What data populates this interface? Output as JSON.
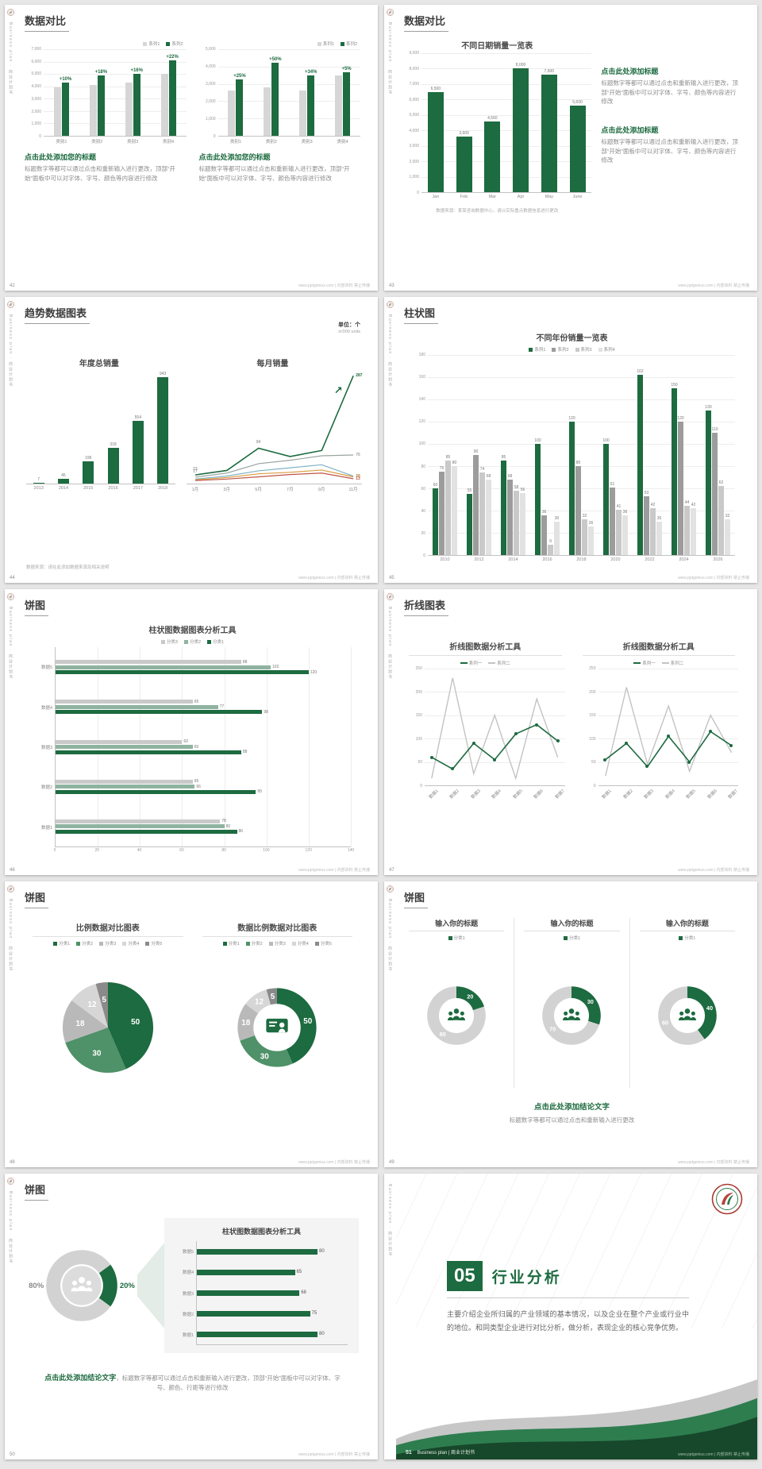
{
  "site_note": "www.pptgenius.com | 内部资料 禁止传播",
  "sidebar_text": "Business plan · 商业计划书",
  "slides": [
    {
      "page_no": "42",
      "title": "数据对比",
      "columns": [
        {
          "heading": "点击此处添加您的标题",
          "body": "标题数字等都可以通过点击和重新输入进行更改，顶部“开始”面板中可以对字体、字号、颜色等内容进行修改",
          "chart": {
            "type": "vbar",
            "ymax": 7000,
            "yticks": [
              "7,000",
              "6,000",
              "5,000",
              "4,000",
              "3,000",
              "2,000",
              "1,000",
              "0"
            ],
            "categories": [
              "类别1",
              "类别2",
              "类别3",
              "类别4"
            ],
            "legend": [
              {
                "label": "系列1",
                "color": "#d6d6d6"
              },
              {
                "label": "系列2",
                "color": "#1d6b40"
              }
            ],
            "series": [
              {
                "color": "#d6d6d6",
                "values": [
                  3900,
                  4100,
                  4300,
                  5000
                ]
              },
              {
                "color": "#1d6b40",
                "values": [
                  4300,
                  4850,
                  5000,
                  6100
                ],
                "pct": [
                  "+10%",
                  "+18%",
                  "+16%",
                  "+22%"
                ]
              }
            ]
          }
        },
        {
          "heading": "点击此处添加您的标题",
          "body": "标题数字等都可以通过点击和重新输入进行更改，顶部“开始”面板中可以对字体、字号、颜色等内容进行修改",
          "chart": {
            "type": "vbar",
            "ymax": 5000,
            "yticks": [
              "5,000",
              "4,000",
              "3,000",
              "2,000",
              "1,000",
              "0"
            ],
            "categories": [
              "类别1",
              "类别2",
              "类别3",
              "类别4"
            ],
            "legend": [
              {
                "label": "系列1",
                "color": "#d6d6d6"
              },
              {
                "label": "系列2",
                "color": "#1d6b40"
              }
            ],
            "series": [
              {
                "color": "#d6d6d6",
                "values": [
                  2600,
                  2800,
                  2600,
                  3500
                ]
              },
              {
                "color": "#1d6b40",
                "values": [
                  3250,
                  4200,
                  3480,
                  3680
                ],
                "pct": [
                  "+25%",
                  "+50%",
                  "+34%",
                  "+5%"
                ]
              }
            ]
          }
        }
      ]
    },
    {
      "page_no": "43",
      "title": "数据对比",
      "chart": {
        "type": "vbar",
        "title": "不同日期销量一览表",
        "ymax": 9000,
        "yticks": [
          "9,000",
          "8,000",
          "7,000",
          "6,000",
          "5,000",
          "4,000",
          "3,000",
          "2,000",
          "1,000",
          "0"
        ],
        "categories": [
          "Jan",
          "Feb",
          "Mar",
          "Apr",
          "May",
          "June"
        ],
        "series": [
          {
            "color": "#1d6b40",
            "values": [
              6500,
              3600,
              4560,
              8000,
              7600,
              5600
            ],
            "labels": [
              "6,500",
              "3,600",
              "4,560",
              "8,000",
              "7,600",
              "5,600"
            ]
          }
        ]
      },
      "blocks": [
        {
          "heading": "点击此处添加标题",
          "body": "标题数字等都可以通过点击和重新输入进行更改，顶部“开始”面板中可以对字体、字号、颜色等内容进行修改"
        },
        {
          "heading": "点击此处添加标题",
          "body": "标题数字等都可以通过点击和重新输入进行更改，顶部“开始”面板中可以对字体、字号、颜色等内容进行修改"
        }
      ],
      "source_note": "数据来源：某某咨询数据中心，请以实际重点数据信息进行更改"
    },
    {
      "page_no": "44",
      "title": "趋势数据图表",
      "unit_label": "单位：个",
      "unit_sub": "in'000 units",
      "bar_chart": {
        "type": "vbar",
        "title": "年度总销量",
        "ymax": 1000,
        "yticks": [],
        "grid": false,
        "categories": [
          "2013",
          "2014",
          "2015",
          "2016",
          "2017",
          "2018"
        ],
        "series": [
          {
            "color": "#1d6b40",
            "values": [
              7,
              45,
              196,
              318,
              554,
              943
            ],
            "labels": [
              "7",
              "45",
              "196",
              "318",
              "554",
              "943"
            ]
          }
        ]
      },
      "line_chart": {
        "type": "line",
        "title": "每月销量",
        "ymax": 300,
        "yticks": [],
        "arrow": true,
        "x": [
          "1月",
          "3月",
          "5月",
          "7月",
          "9月",
          "11月"
        ],
        "series": [
          {
            "color": "#1d6b40",
            "w": 1.6,
            "values": [
              23,
              35,
              94,
              72,
              88,
              287
            ],
            "start_label": "23",
            "mid_label": "94",
            "end_label": "287"
          },
          {
            "color": "#9aa5a0",
            "values": [
              17,
              28,
              53,
              62,
              74,
              76
            ],
            "start_label": "17",
            "end_label": "76"
          },
          {
            "color": "#7fb2c6",
            "values": [
              12,
              20,
              34,
              42,
              50,
              20
            ],
            "end_label": "20"
          },
          {
            "color": "#d89c3e",
            "values": [
              10,
              16,
              26,
              30,
              36,
              18
            ],
            "end_label": "18"
          },
          {
            "color": "#bf5448",
            "values": [
              8,
              12,
              18,
              24,
              28,
              13
            ],
            "end_label": "13"
          }
        ]
      },
      "source_note": "数据来源：请在此添加数据来源及相关说明"
    },
    {
      "page_no": "45",
      "title": "柱状图",
      "chart": {
        "type": "vbar",
        "title": "不同年份销量一览表",
        "ymax": 180,
        "show_values": true,
        "yticks": [
          "180",
          "160",
          "140",
          "120",
          "100",
          "80",
          "60",
          "40",
          "20",
          "0"
        ],
        "categories": [
          "2010",
          "2012",
          "2014",
          "2016",
          "2018",
          "2020",
          "2022",
          "2024",
          "2026"
        ],
        "legend": [
          {
            "label": "系列1",
            "color": "#1d6b40"
          },
          {
            "label": "系列2",
            "color": "#9c9c9c"
          },
          {
            "label": "系列3",
            "color": "#c9c9c9"
          },
          {
            "label": "系列4",
            "color": "#e2e2e2"
          }
        ],
        "series": [
          {
            "color": "#1d6b40",
            "values": [
              60,
              55,
              85,
              100,
              120,
              100,
              162,
              150,
              130
            ]
          },
          {
            "color": "#9c9c9c",
            "values": [
              75,
              90,
              68,
              36,
              80,
              61,
              53,
              120,
              110
            ]
          },
          {
            "color": "#c9c9c9",
            "values": [
              85,
              74,
              58,
              9,
              32,
              41,
              42,
              44,
              62
            ]
          },
          {
            "color": "#e2e2e2",
            "values": [
              80,
              68,
              56,
              30,
              26,
              36,
              30,
              42,
              32
            ]
          }
        ]
      }
    },
    {
      "page_no": "46",
      "title": "饼图",
      "chart": {
        "type": "hbar",
        "title": "柱状图数据图表分析工具",
        "xmax": 140,
        "legend": [
          {
            "label": "分类3",
            "color": "#c9c9c9"
          },
          {
            "label": "分类2",
            "color": "#8fb3a0"
          },
          {
            "label": "分类1",
            "color": "#1d6b40"
          }
        ],
        "categories": [
          "数据5",
          "数据4",
          "数据3",
          "数据2",
          "数据1"
        ],
        "series": [
          {
            "color": "#c9c9c9",
            "values": [
              88,
              65,
              60,
              65,
              78
            ]
          },
          {
            "color": "#8fb3a0",
            "values": [
              102,
              77,
              65,
              66,
              80
            ]
          },
          {
            "color": "#1d6b40",
            "values": [
              120,
              98,
              88,
              95,
              86
            ]
          }
        ],
        "xticks": [
          "0",
          "20",
          "40",
          "60",
          "80",
          "100",
          "120",
          "140"
        ]
      }
    },
    {
      "page_no": "47",
      "title": "折线图表",
      "charts": [
        {
          "type": "line",
          "title": "折线图数据分析工具",
          "ymax": 250,
          "yticks": [
            "250",
            "200",
            "150",
            "100",
            "50",
            "0"
          ],
          "legend": [
            {
              "label": "系列一",
              "color": "#1d6b40"
            },
            {
              "label": "系列二",
              "color": "#c3c3c3"
            }
          ],
          "x": [
            "数据1",
            "数据2",
            "数据3",
            "数据4",
            "数据5",
            "数据6",
            "数据7"
          ],
          "series": [
            {
              "color": "#c3c3c3",
              "w": 1.4,
              "values": [
                15,
                230,
                25,
                150,
                15,
                185,
                60
              ]
            },
            {
              "color": "#1d6b40",
              "w": 1.6,
              "marker": true,
              "values": [
                60,
                35,
                90,
                55,
                110,
                130,
                95
              ]
            }
          ]
        },
        {
          "type": "line",
          "title": "折线图数据分析工具",
          "ymax": 250,
          "yticks": [
            "250",
            "200",
            "150",
            "100",
            "50",
            "0"
          ],
          "legend": [
            {
              "label": "系列一",
              "color": "#1d6b40"
            },
            {
              "label": "系列二",
              "color": "#c3c3c3"
            }
          ],
          "x": [
            "数据1",
            "数据2",
            "数据3",
            "数据4",
            "数据5",
            "数据6",
            "数据7"
          ],
          "series": [
            {
              "color": "#c3c3c3",
              "w": 1.4,
              "values": [
                20,
                210,
                45,
                170,
                30,
                150,
                70
              ]
            },
            {
              "color": "#1d6b40",
              "w": 1.6,
              "marker": true,
              "values": [
                55,
                90,
                40,
                105,
                50,
                115,
                85
              ]
            }
          ]
        }
      ]
    },
    {
      "page_no": "48",
      "title": "饼图",
      "pies": [
        {
          "type": "pie",
          "title": "比例数据对比图表",
          "donut": false,
          "legend": [
            {
              "label": "分类1",
              "color": "#1d6b40"
            },
            {
              "label": "分类2",
              "color": "#4f9168"
            },
            {
              "label": "分类3",
              "color": "#b9b9b9"
            },
            {
              "label": "分类4",
              "color": "#d6d6d6"
            },
            {
              "label": "分类5",
              "color": "#8a8a8a"
            }
          ],
          "values": [
            50,
            30,
            18,
            12,
            5
          ],
          "labels": [
            "50",
            "30",
            "18",
            "12",
            "5"
          ],
          "colors": [
            "#1d6b40",
            "#4f9168",
            "#b9b9b9",
            "#d6d6d6",
            "#8a8a8a"
          ]
        },
        {
          "type": "pie",
          "title": "数据比例数据对比图表",
          "donut": true,
          "icon": "presenter",
          "legend": [
            {
              "label": "分类1",
              "color": "#1d6b40"
            },
            {
              "label": "分类2",
              "color": "#4f9168"
            },
            {
              "label": "分类3",
              "color": "#b9b9b9"
            },
            {
              "label": "分类4",
              "color": "#d6d6d6"
            },
            {
              "label": "分类5",
              "color": "#8a8a8a"
            }
          ],
          "values": [
            50,
            30,
            18,
            12,
            5
          ],
          "labels": [
            "50",
            "30",
            "18",
            "12",
            "5"
          ],
          "colors": [
            "#1d6b40",
            "#4f9168",
            "#b9b9b9",
            "#d6d6d6",
            "#8a8a8a"
          ]
        }
      ]
    },
    {
      "page_no": "49",
      "title": "饼图",
      "donuts": [
        {
          "type": "pie",
          "title": "输入你的标题",
          "donut": true,
          "icon": "group",
          "legend": [
            {
              "label": "分类1",
              "color": "#1d6b40"
            }
          ],
          "values": [
            20,
            80
          ],
          "labels": [
            "20",
            "80"
          ],
          "colors": [
            "#1d6b40",
            "#d2d2d2"
          ]
        },
        {
          "type": "pie",
          "title": "输入你的标题",
          "donut": true,
          "icon": "group",
          "legend": [
            {
              "label": "分类1",
              "color": "#1d6b40"
            }
          ],
          "values": [
            30,
            70
          ],
          "labels": [
            "30",
            "70"
          ],
          "colors": [
            "#1d6b40",
            "#d2d2d2"
          ]
        },
        {
          "type": "pie",
          "title": "输入你的标题",
          "donut": true,
          "icon": "group",
          "legend": [
            {
              "label": "分类1",
              "color": "#1d6b40"
            }
          ],
          "values": [
            40,
            60
          ],
          "labels": [
            "40",
            "60"
          ],
          "colors": [
            "#1d6b40",
            "#d2d2d2"
          ]
        }
      ],
      "conclusion": "点击此处添加结论文字",
      "conclusion_sub": "标题数字等都可以通过点击和重新输入进行更改"
    },
    {
      "page_no": "50",
      "title": "饼图",
      "donut": {
        "type": "pie",
        "donut": true,
        "icon": "group",
        "icon_color": "#ffffff",
        "center_fill": "#dcdcdc",
        "start_deg": -36,
        "values": [
          20,
          80
        ],
        "labels": [
          "20%",
          "80%"
        ],
        "colors": [
          "#1d6b40",
          "#d2d2d2"
        ],
        "label_colors": [
          "#1d6b40",
          "#8a8a8a"
        ]
      },
      "panel": {
        "title": "柱状图数据图表分析工具",
        "chart": {
          "type": "hbar",
          "xmax": 100,
          "categories": [
            "数据5",
            "数据4",
            "数据3",
            "数据2",
            "数据1"
          ],
          "series": [
            {
              "color": "#1d6b40",
              "values": [
                80,
                65,
                68,
                75,
                80
              ]
            }
          ]
        }
      },
      "conclusion": "点击此处添加结论文字",
      "conclusion_rest": "，标题数字等都可以通过点击和重新输入进行更改，顶部“开始”面板中可以对字体、字号、颜色、行距等进行修改"
    },
    {
      "page_no": "51",
      "number": "05",
      "title": "行业分析",
      "body": "主要介绍企业所归属的产业领域的基本情况，以及企业在整个产业或行业中的地位。和同类型企业进行对比分析，做分析，表现企业的核心竞争优势。",
      "footer_label": "Business plan | 商业计划书"
    }
  ]
}
